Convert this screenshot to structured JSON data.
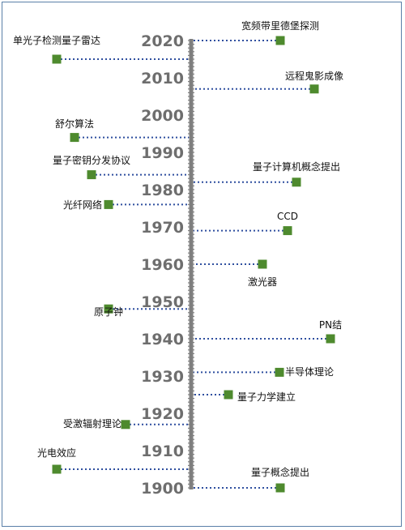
{
  "timeline": {
    "years": [
      "1900",
      "1910",
      "1920",
      "1930",
      "1940",
      "1950",
      "1960",
      "1970",
      "1980",
      "1990",
      "2000",
      "2010",
      "2020"
    ],
    "year_values": [
      1900,
      1910,
      1920,
      1930,
      1940,
      1950,
      1960,
      1970,
      1980,
      1990,
      2000,
      2010,
      2020
    ],
    "colors": {
      "axis": "#7f7f7f",
      "marker": "#4e8a2e",
      "connector": "#2f4f9f",
      "year_text": "#6e6e6e"
    },
    "events": [
      {
        "label": "量子概念提出",
        "year": 1900,
        "side": "right"
      },
      {
        "label": "光电效应",
        "year": 1905,
        "side": "left"
      },
      {
        "label": "受激辐射理论",
        "year": 1917,
        "side": "left"
      },
      {
        "label": "量子力学建立",
        "year": 1925,
        "side": "right"
      },
      {
        "label": "半导体理论",
        "year": 1931,
        "side": "right"
      },
      {
        "label": "PN结",
        "year": 1940,
        "side": "right"
      },
      {
        "label": "原子钟",
        "year": 1948,
        "side": "left"
      },
      {
        "label": "激光器",
        "year": 1960,
        "side": "right"
      },
      {
        "label": "CCD",
        "year": 1969,
        "side": "right"
      },
      {
        "label": "光纤网络",
        "year": 1976,
        "side": "left"
      },
      {
        "label": "量子计算机概念提出",
        "year": 1982,
        "side": "right"
      },
      {
        "label": "量子密钥分发协议",
        "year": 1984,
        "side": "left"
      },
      {
        "label": "舒尔算法",
        "year": 1994,
        "side": "left"
      },
      {
        "label": "远程鬼影成像",
        "year": 2007,
        "side": "right"
      },
      {
        "label": "单光子检测量子雷达",
        "year": 2015,
        "side": "left"
      },
      {
        "label": "宽频带里德堡探测",
        "year": 2020,
        "side": "right"
      }
    ]
  }
}
